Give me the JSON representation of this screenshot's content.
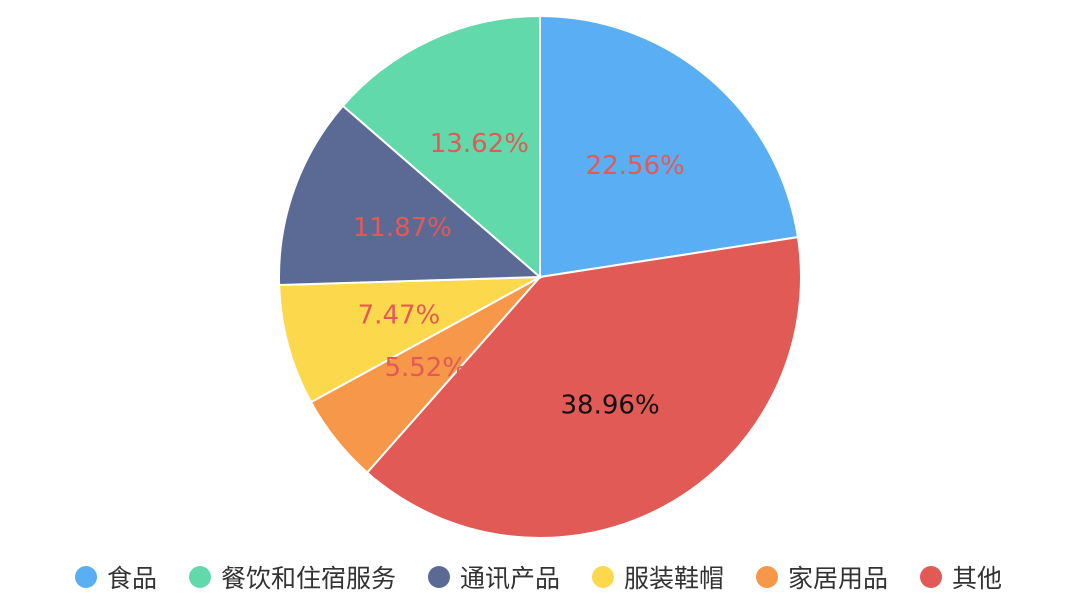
{
  "chart_data": {
    "type": "pie",
    "categories": [
      "食品",
      "餐饮和住宿服务",
      "通讯产品",
      "服装鞋帽",
      "家居用品",
      "其他"
    ],
    "values": [
      22.56,
      38.96,
      5.52,
      7.47,
      11.87,
      13.62
    ],
    "slice_order": [
      "食品",
      "其他",
      "家居用品",
      "服装鞋帽",
      "通讯产品",
      "餐饮和住宿服务"
    ],
    "labels": [
      "22.56%",
      "38.96%",
      "5.52%",
      "7.47%",
      "11.87%",
      "13.62%"
    ],
    "colors": [
      "#5aaef4",
      "#e15a55",
      "#f79749",
      "#fcd94c",
      "#5a6a95",
      "#62d9ab"
    ],
    "label_colors": [
      "#e15a55",
      "#111111",
      "#e15a55",
      "#e15a55",
      "#e15a55",
      "#e15a55"
    ],
    "start_angle": "12 o'clock",
    "direction": "clockwise",
    "legend_position": "bottom",
    "legend": [
      {
        "name": "食品",
        "color": "#5aaef4"
      },
      {
        "name": "餐饮和住宿服务",
        "color": "#62d9ab"
      },
      {
        "name": "通讯产品",
        "color": "#5a6a95"
      },
      {
        "name": "服装鞋帽",
        "color": "#fcd94c"
      },
      {
        "name": "家居用品",
        "color": "#f79749"
      },
      {
        "name": "其他",
        "color": "#e15a55"
      }
    ]
  }
}
